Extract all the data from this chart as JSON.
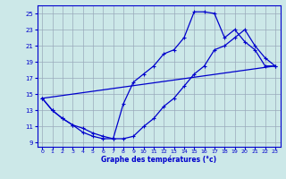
{
  "xlabel": "Graphe des températures (°c)",
  "bg_color": "#cce8e8",
  "grid_color": "#99aabb",
  "line_color": "#0000cc",
  "ylim": [
    8.5,
    26
  ],
  "xlim": [
    -0.5,
    23.5
  ],
  "yticks": [
    9,
    11,
    13,
    15,
    17,
    19,
    21,
    23,
    25
  ],
  "xticks": [
    0,
    1,
    2,
    3,
    4,
    5,
    6,
    7,
    8,
    9,
    10,
    11,
    12,
    13,
    14,
    15,
    16,
    17,
    18,
    19,
    20,
    21,
    22,
    23
  ],
  "line1_x": [
    0,
    1,
    2,
    3,
    4,
    5,
    6,
    7,
    8,
    9,
    10,
    11,
    12,
    13,
    14,
    15,
    16,
    17,
    18,
    19,
    20,
    21,
    22,
    23
  ],
  "line1_y": [
    14.5,
    13,
    12,
    11.2,
    10.3,
    9.8,
    9.5,
    9.5,
    13.8,
    16.5,
    17.5,
    18.5,
    20,
    20.5,
    22,
    25.2,
    25.2,
    25,
    22,
    23,
    21.5,
    20.5,
    18.5,
    18.5
  ],
  "line2_x": [
    0,
    1,
    2,
    3,
    4,
    5,
    6,
    7,
    8,
    9,
    10,
    11,
    12,
    13,
    14,
    15,
    16,
    17,
    18,
    19,
    20,
    21,
    22,
    23
  ],
  "line2_y": [
    14.5,
    13,
    12,
    11.2,
    10.8,
    10.2,
    9.8,
    9.5,
    9.5,
    9.8,
    11,
    12,
    13.5,
    14.5,
    16,
    17.5,
    18.5,
    20.5,
    21,
    22,
    23,
    21,
    19.5,
    18.5
  ],
  "line3_x": [
    0,
    23
  ],
  "line3_y": [
    14.5,
    18.5
  ]
}
